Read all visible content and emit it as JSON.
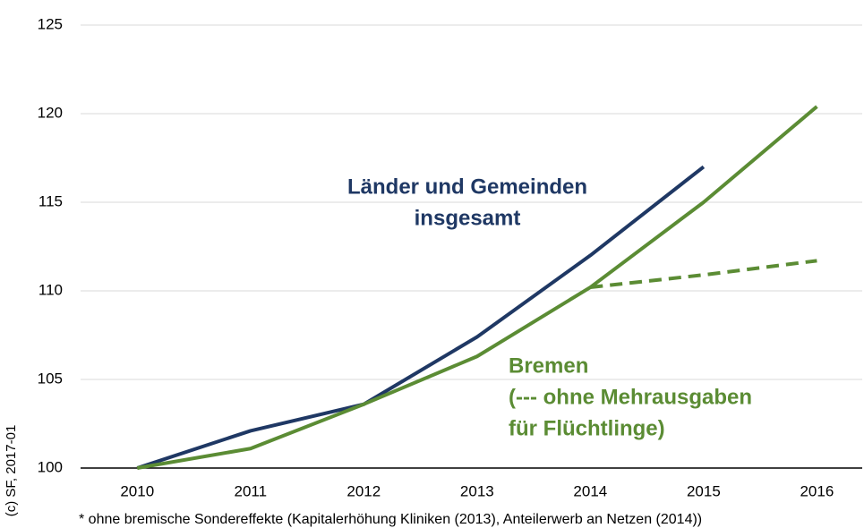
{
  "chart_data": {
    "type": "line",
    "x": [
      2010,
      2011,
      2012,
      2013,
      2014,
      2015,
      2016
    ],
    "xticks": [
      2010,
      2011,
      2012,
      2013,
      2014,
      2015,
      2016
    ],
    "xlim": [
      2009.5,
      2016.4
    ],
    "ylim": [
      100,
      125
    ],
    "yticks": [
      100,
      105,
      110,
      115,
      120,
      125
    ],
    "grid": true,
    "series": [
      {
        "label": [
          "Länder und Gemeinden",
          "insgesamt"
        ],
        "color": "#1f3864",
        "style": "solid",
        "values": [
          100,
          102.1,
          103.6,
          107.4,
          112,
          117,
          null
        ]
      },
      {
        "label": [
          "Bremen",
          "(--- ohne Mehrausgaben",
          "für Flüchtlinge)"
        ],
        "color": "#5b8c34",
        "style": "solid",
        "values": [
          100,
          101.1,
          103.6,
          106.3,
          110.2,
          115,
          120.4
        ]
      },
      {
        "color": "#5b8c34",
        "style": "dashed",
        "values": [
          null,
          null,
          null,
          null,
          110.2,
          110.9,
          111.7
        ]
      }
    ],
    "footnote": "* ohne bremische Sondereffekte (Kapitalerhöhung Kliniken (2013), Anteilerwerb an Netzen (2014))",
    "source": "(c) SF, 2017-01"
  }
}
